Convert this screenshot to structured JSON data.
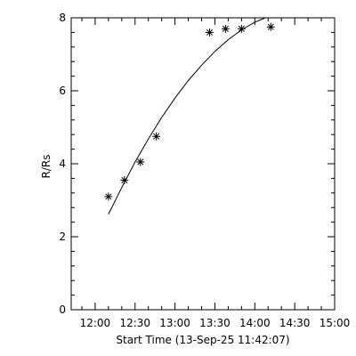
{
  "chart_data": {
    "type": "scatter",
    "title": "",
    "xlabel": "Start Time (13-Sep-25 11:42:07)",
    "ylabel": "R/Rs",
    "xlim": [
      "11:42",
      "15:00"
    ],
    "ylim": [
      0,
      8
    ],
    "grid": false,
    "x_ticks": [
      "12:00",
      "12:30",
      "13:00",
      "13:30",
      "14:00",
      "14:30",
      "15:00"
    ],
    "y_ticks": [
      "0",
      "2",
      "4",
      "6",
      "8"
    ],
    "series": [
      {
        "kind": "points",
        "marker": "asterisk",
        "points": [
          {
            "x": "12:10",
            "y": 3.1
          },
          {
            "x": "12:22",
            "y": 3.55
          },
          {
            "x": "12:34",
            "y": 4.05
          },
          {
            "x": "12:46",
            "y": 4.75
          },
          {
            "x": "13:26",
            "y": 7.6
          },
          {
            "x": "13:38",
            "y": 7.7
          },
          {
            "x": "13:50",
            "y": 7.7
          },
          {
            "x": "14:12",
            "y": 7.75
          }
        ]
      },
      {
        "kind": "fit",
        "line": "solid",
        "points": [
          {
            "x": "12:10",
            "y": 2.62
          },
          {
            "x": "12:20",
            "y": 3.35
          },
          {
            "x": "12:30",
            "y": 4.05
          },
          {
            "x": "12:40",
            "y": 4.68
          },
          {
            "x": "12:50",
            "y": 5.27
          },
          {
            "x": "13:00",
            "y": 5.8
          },
          {
            "x": "13:10",
            "y": 6.28
          },
          {
            "x": "13:20",
            "y": 6.7
          },
          {
            "x": "13:30",
            "y": 7.08
          },
          {
            "x": "13:40",
            "y": 7.4
          },
          {
            "x": "13:50",
            "y": 7.67
          },
          {
            "x": "14:00",
            "y": 7.88
          },
          {
            "x": "14:08",
            "y": 8.0
          }
        ]
      }
    ]
  }
}
